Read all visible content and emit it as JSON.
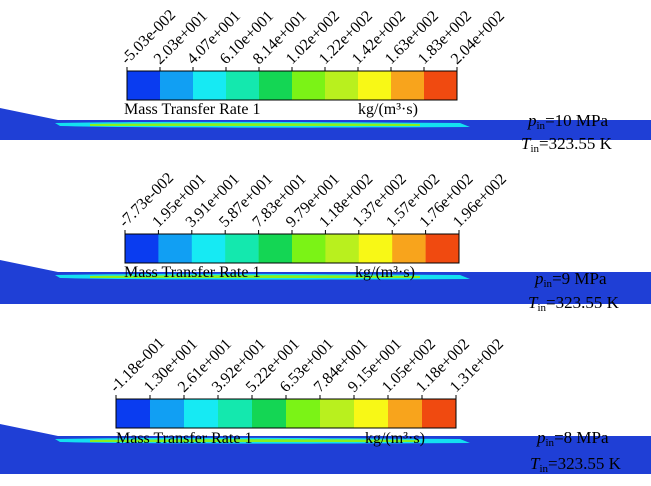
{
  "colors": {
    "scale": [
      "#0a3cf0",
      "#119ff3",
      "#16eaf3",
      "#14e8ae",
      "#14d654",
      "#7bf316",
      "#b9f01e",
      "#f8f816",
      "#f8a41c",
      "#f04a10"
    ],
    "flow_background": "#1f3fd6",
    "flow_cyan": "#14e0f0",
    "flow_green": "#8af01e"
  },
  "chart_data": [
    {
      "type": "heatmap",
      "title": "Mass Transfer Rate 1",
      "unit": "kg/(m³·s)",
      "tick_labels": [
        "-5.03e-002",
        "2.03e+001",
        "4.07e+001",
        "6.10e+001",
        "8.14e+001",
        "1.02e+002",
        "1.22e+002",
        "1.42e+002",
        "1.63e+002",
        "1.83e+002",
        "2.04e+002"
      ],
      "min": -0.0503,
      "max": 204,
      "condition": {
        "p_sym": "p",
        "p_sub": "in",
        "p_value": "=10 MPa",
        "t_sym": "T",
        "t_sub": "in",
        "t_value": "=323.55 K"
      }
    },
    {
      "type": "heatmap",
      "title": "Mass Transfer Rate 1",
      "unit": "kg/(m³·s)",
      "tick_labels": [
        "-7.73e-002",
        "1.95e+001",
        "3.91e+001",
        "5.87e+001",
        "7.83e+001",
        "9.79e+001",
        "1.18e+002",
        "1.37e+002",
        "1.57e+002",
        "1.76e+002",
        "1.96e+002"
      ],
      "min": -0.0773,
      "max": 196,
      "condition": {
        "p_sym": "p",
        "p_sub": "in",
        "p_value": "=9 MPa",
        "t_sym": "T",
        "t_sub": "in",
        "t_value": "=323.55 K"
      }
    },
    {
      "type": "heatmap",
      "title": "Mass Transfer Rate 1",
      "unit": "kg/(m³·s)",
      "tick_labels": [
        "-1.18e-001",
        "1.30e+001",
        "2.61e+001",
        "3.92e+001",
        "5.22e+001",
        "6.53e+001",
        "7.84e+001",
        "9.15e+001",
        "1.05e+002",
        "1.18e+002",
        "1.31e+002"
      ],
      "min": -0.118,
      "max": 131,
      "condition": {
        "p_sym": "p",
        "p_sub": "in",
        "p_value": "=8 MPa",
        "t_sym": "T",
        "t_sub": "in",
        "t_value": "=323.55 K"
      }
    }
  ]
}
